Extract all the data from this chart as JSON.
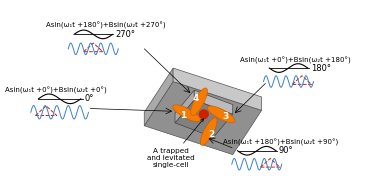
{
  "bg_color": "#ffffff",
  "wave_color_blue": "#3a7fd5",
  "wave_color_red_dashed": "#cc2200",
  "electrode_color": "#f57c00",
  "green_color": "#2d7d32",
  "red_cell": "#cc2200",
  "text_color": "#000000",
  "annotations": {
    "top_center": "A trapped\nand levitated\nsingle-cell",
    "label_0": "0°",
    "label_90": "90°",
    "label_180": "180°",
    "label_270": "270°",
    "eq_0": "Asin(ω₁t +0°)+Bsin(ω₂t +0°)",
    "eq_90": "Asin(ω₁t +180°)+Bsin(ω₂t +90°)",
    "eq_180": "Asin(ω₁t +0°)+Bsin(ω₂t +180°)",
    "eq_270": "Asin(ω₁t +180°)+Bsin(ω₂t +270°)"
  },
  "electrode_labels": [
    "1",
    "2",
    "3",
    "4"
  ]
}
